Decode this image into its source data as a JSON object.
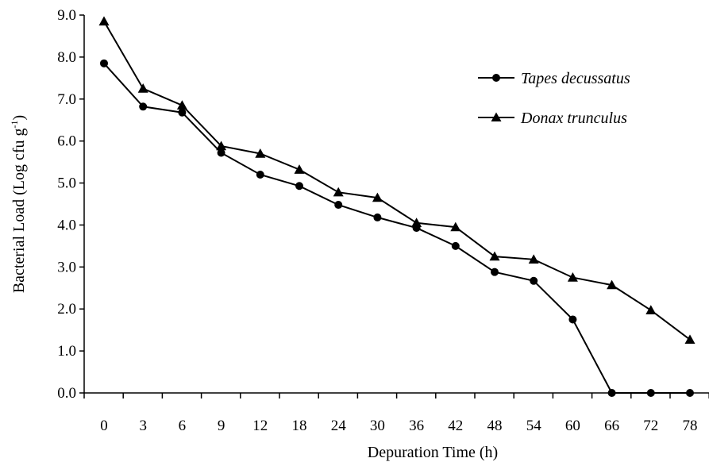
{
  "chart_data": {
    "type": "line",
    "xlabel": "Depuration Time (h)",
    "ylabel_main": "Bacterial Load (Log cfu g",
    "ylabel_sup": "-1",
    "ylabel_close": ")",
    "categories": [
      "0",
      "3",
      "6",
      "9",
      "12",
      "18",
      "24",
      "30",
      "36",
      "42",
      "48",
      "54",
      "60",
      "66",
      "72",
      "78"
    ],
    "yticks": [
      "0.0",
      "1.0",
      "2.0",
      "3.0",
      "4.0",
      "5.0",
      "6.0",
      "7.0",
      "8.0",
      "9.0"
    ],
    "ylim": [
      0,
      9
    ],
    "grid": false,
    "legend": "right",
    "series": [
      {
        "name": "Tapes decussatus",
        "marker": "circle",
        "color": "#000000",
        "values": [
          7.85,
          6.82,
          6.68,
          5.72,
          5.2,
          4.93,
          4.48,
          4.18,
          3.93,
          3.5,
          2.88,
          2.67,
          1.75,
          0,
          0,
          0
        ]
      },
      {
        "name": "Donax trunculus",
        "marker": "triangle",
        "color": "#000000",
        "values": [
          8.85,
          7.25,
          6.85,
          5.88,
          5.7,
          5.32,
          4.78,
          4.65,
          4.05,
          3.95,
          3.25,
          3.18,
          2.75,
          2.57,
          1.97,
          1.27
        ]
      }
    ]
  }
}
